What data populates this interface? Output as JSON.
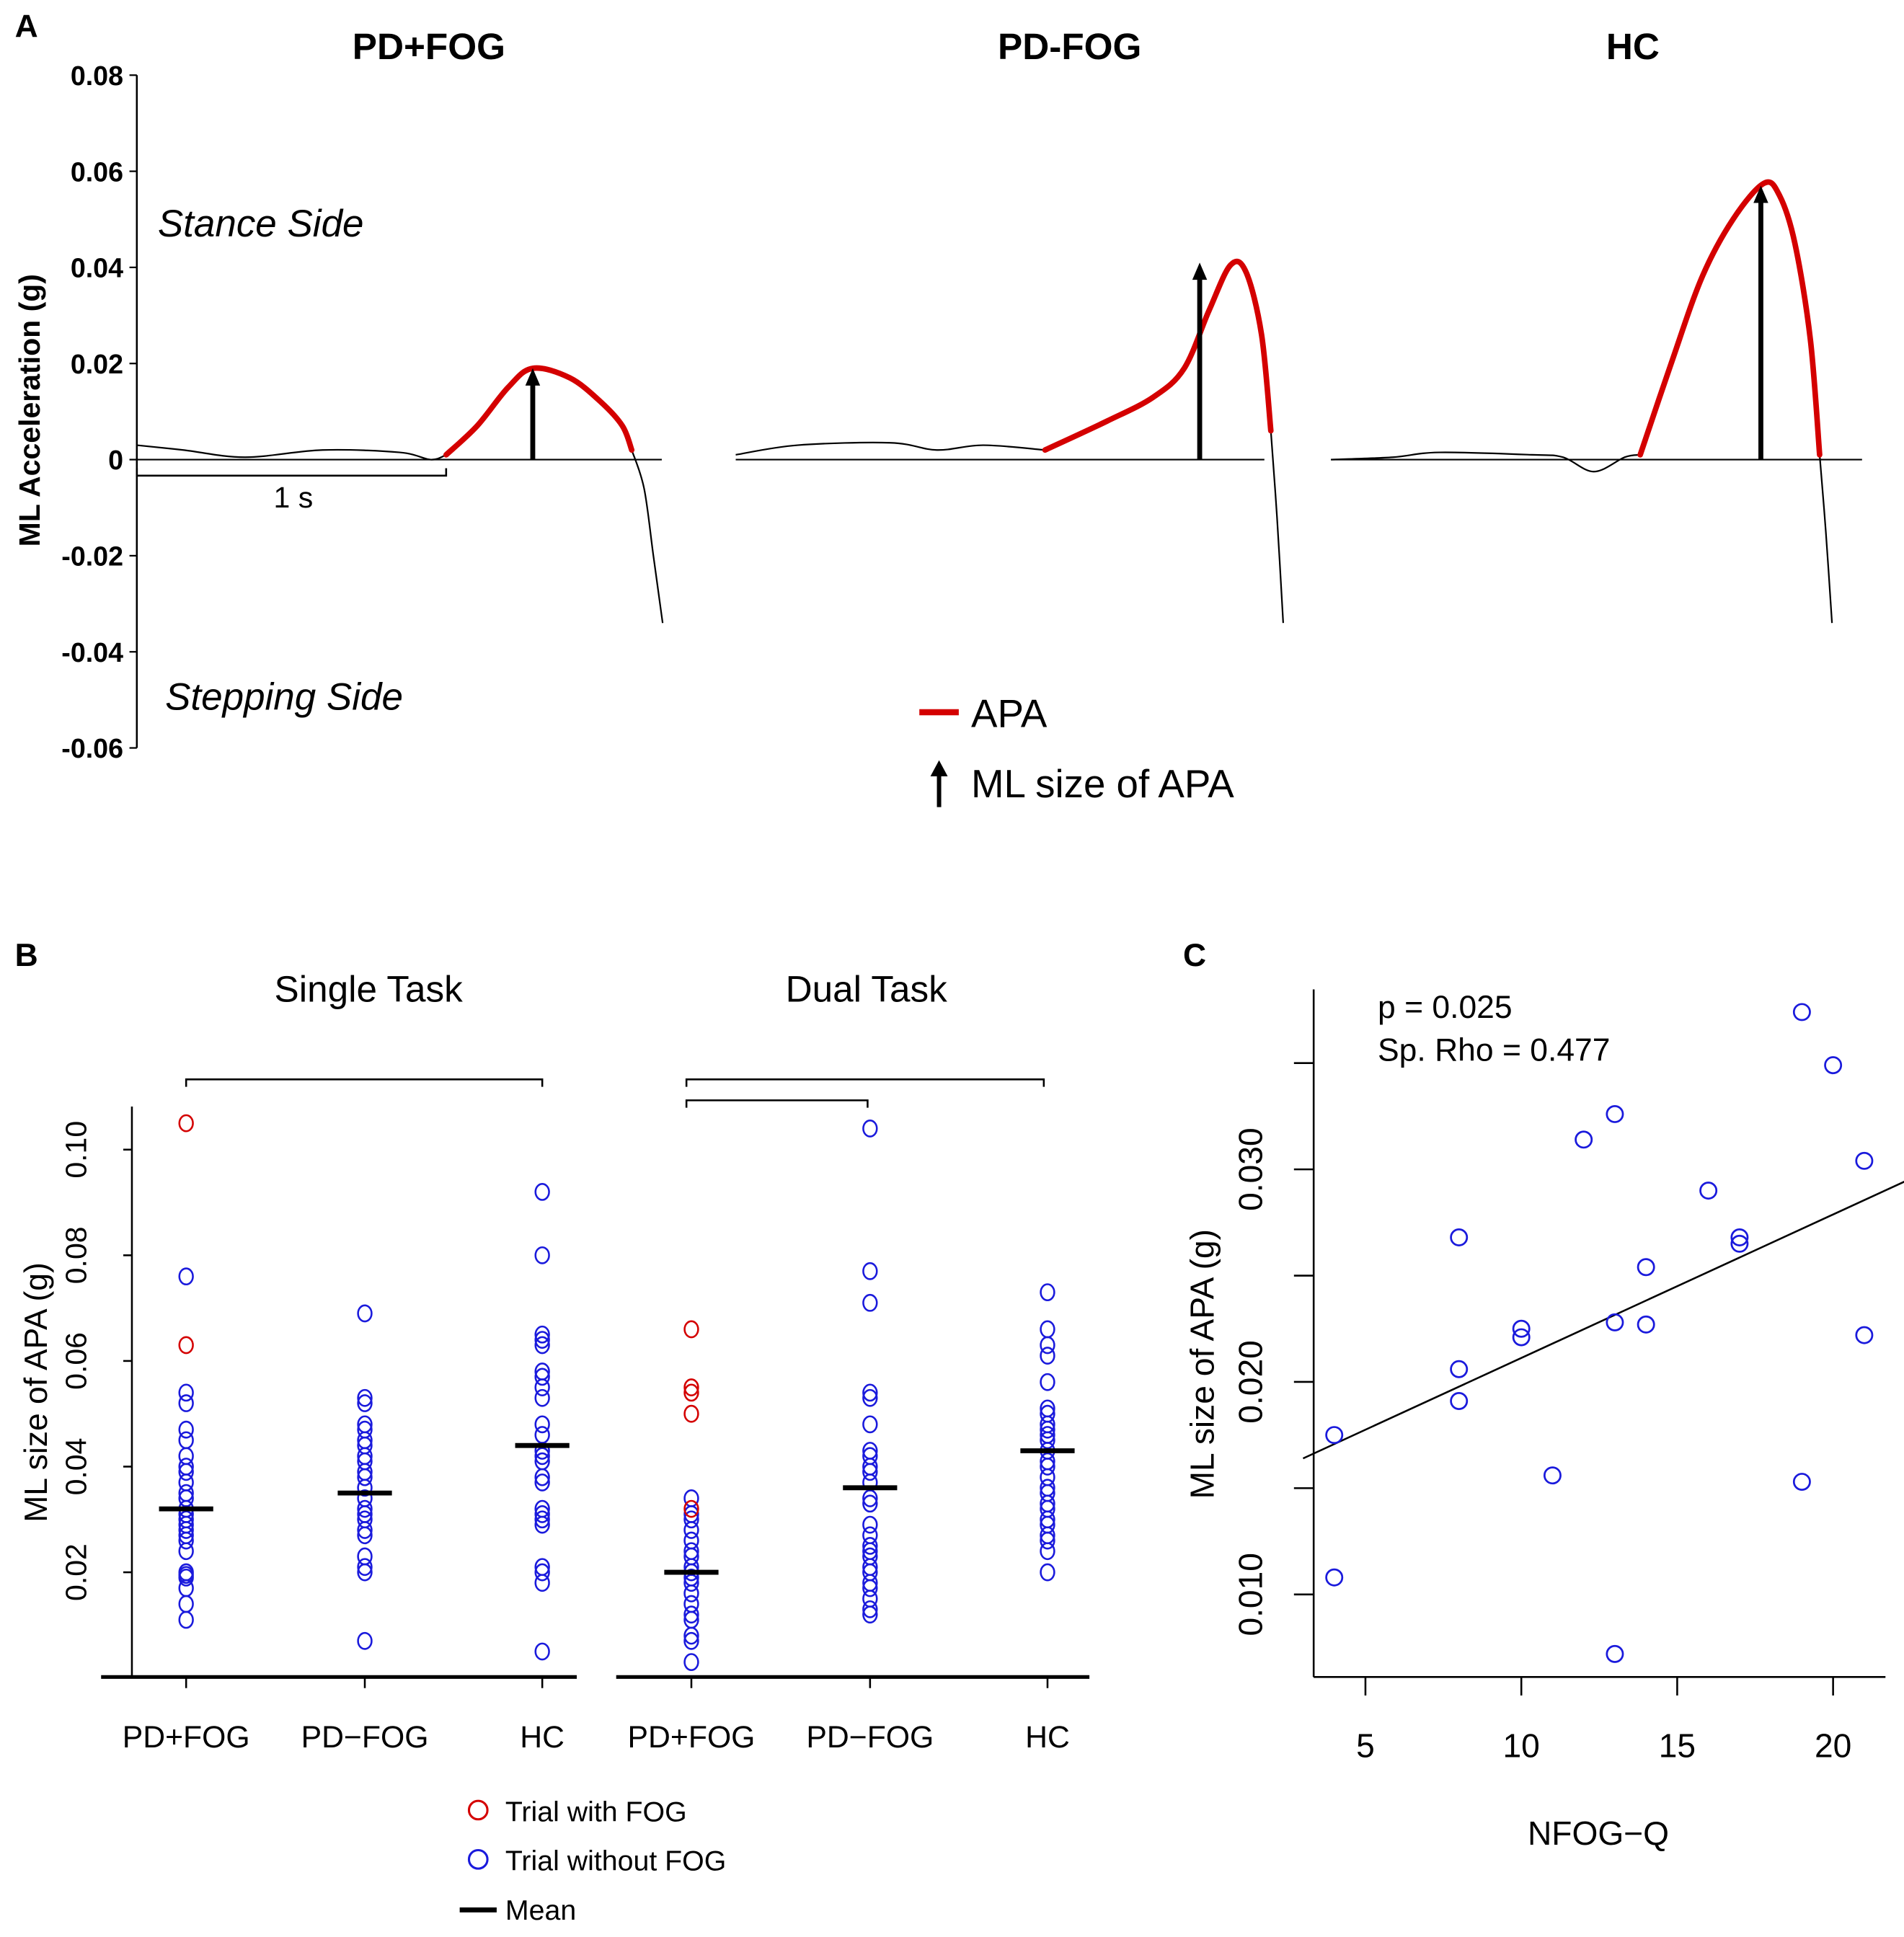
{
  "panel_labels": {
    "a": "A",
    "b": "B",
    "c": "C"
  },
  "colors": {
    "apa": "#d40000",
    "fog": "#d40000",
    "nofog": "#1a1adc",
    "ink": "#000000"
  },
  "chart_data": [
    {
      "type": "line",
      "id": "A",
      "ylabel": "ML Acceleration (g)",
      "ylim": [
        -0.06,
        0.08
      ],
      "yticks": [
        "0.08",
        "0.06",
        "0.04",
        "0.02",
        "0",
        "-0.02",
        "-0.04",
        "-0.06"
      ],
      "ytick_values": [
        0.08,
        0.06,
        0.04,
        0.02,
        0,
        -0.02,
        -0.04,
        -0.06
      ],
      "annotations": {
        "stance": "Stance Side",
        "stepping": "Stepping Side",
        "scale_bar": "1 s"
      },
      "legend": {
        "apa": "APA",
        "arrow": "ML size of APA"
      },
      "panels": [
        {
          "title": "PD+FOG",
          "apa_size": 0.019,
          "apa_time": 1.28,
          "pre": [
            [
              0,
              0.003
            ],
            [
              0.15,
              0.002
            ],
            [
              0.35,
              0.0005
            ],
            [
              0.6,
              0.002
            ],
            [
              0.85,
              0.0015
            ],
            [
              0.95,
              0.0
            ],
            [
              1.0,
              0.001
            ]
          ],
          "apa": [
            [
              1.0,
              0.001
            ],
            [
              1.1,
              0.007
            ],
            [
              1.2,
              0.015
            ],
            [
              1.28,
              0.019
            ],
            [
              1.4,
              0.017
            ],
            [
              1.5,
              0.012
            ],
            [
              1.57,
              0.007
            ],
            [
              1.6,
              0.002
            ]
          ],
          "post": [
            [
              1.6,
              0.002
            ],
            [
              1.64,
              -0.006
            ],
            [
              1.67,
              -0.02
            ],
            [
              1.7,
              -0.034
            ]
          ]
        },
        {
          "title": "PD-FOG",
          "apa_size": 0.041,
          "apa_time": 1.5,
          "pre": [
            [
              0,
              0.001
            ],
            [
              0.2,
              0.003
            ],
            [
              0.5,
              0.0035
            ],
            [
              0.65,
              0.002
            ],
            [
              0.8,
              0.003
            ],
            [
              1.0,
              0.002
            ]
          ],
          "apa": [
            [
              1.0,
              0.002
            ],
            [
              1.2,
              0.008
            ],
            [
              1.35,
              0.013
            ],
            [
              1.45,
              0.019
            ],
            [
              1.53,
              0.031
            ],
            [
              1.6,
              0.0405
            ],
            [
              1.65,
              0.039
            ],
            [
              1.7,
              0.026
            ],
            [
              1.73,
              0.006
            ]
          ],
          "post": [
            [
              1.73,
              0.006
            ],
            [
              1.75,
              -0.012
            ],
            [
              1.77,
              -0.034
            ]
          ]
        },
        {
          "title": "HC",
          "apa_size": 0.057,
          "apa_time": 1.39,
          "pre": [
            [
              0,
              0.0
            ],
            [
              0.2,
              0.0005
            ],
            [
              0.35,
              0.0015
            ],
            [
              0.65,
              0.001
            ],
            [
              0.75,
              0.0005
            ],
            [
              0.85,
              -0.0025
            ],
            [
              0.95,
              0.0005
            ],
            [
              1.0,
              0.001
            ]
          ],
          "apa": [
            [
              1.0,
              0.001
            ],
            [
              1.1,
              0.02
            ],
            [
              1.2,
              0.038
            ],
            [
              1.3,
              0.05
            ],
            [
              1.4,
              0.0575
            ],
            [
              1.45,
              0.055
            ],
            [
              1.5,
              0.045
            ],
            [
              1.55,
              0.025
            ],
            [
              1.58,
              0.001
            ]
          ],
          "post": [
            [
              1.58,
              0.001
            ],
            [
              1.6,
              -0.015
            ],
            [
              1.62,
              -0.034
            ]
          ]
        }
      ]
    },
    {
      "type": "scatter",
      "id": "B",
      "ylabel": "ML size of APA (g)",
      "yticks": [
        "0.02",
        "0.04",
        "0.06",
        "0.08",
        "0.10"
      ],
      "ytick_values": [
        0.02,
        0.04,
        0.06,
        0.08,
        0.1
      ],
      "groups": [
        {
          "title": "Single Task",
          "categories": [
            "PD+FOG",
            "PD−FOG",
            "HC"
          ],
          "series": [
            {
              "name": "PD+FOG",
              "mean": 0.032,
              "fog": [
                0.105,
                0.063
              ],
              "nofog": [
                0.076,
                0.054,
                0.052,
                0.047,
                0.045,
                0.042,
                0.04,
                0.039,
                0.037,
                0.035,
                0.034,
                0.032,
                0.031,
                0.03,
                0.029,
                0.028,
                0.027,
                0.026,
                0.024,
                0.02,
                0.0195,
                0.019,
                0.017,
                0.014,
                0.011
              ]
            },
            {
              "name": "PD-FOG",
              "mean": 0.035,
              "fog": [],
              "nofog": [
                0.069,
                0.053,
                0.052,
                0.048,
                0.047,
                0.045,
                0.044,
                0.042,
                0.041,
                0.039,
                0.038,
                0.036,
                0.034,
                0.032,
                0.031,
                0.03,
                0.028,
                0.027,
                0.023,
                0.021,
                0.02,
                0.007
              ]
            },
            {
              "name": "HC",
              "mean": 0.044,
              "fog": [],
              "nofog": [
                0.092,
                0.08,
                0.065,
                0.064,
                0.063,
                0.058,
                0.057,
                0.055,
                0.053,
                0.048,
                0.046,
                0.043,
                0.042,
                0.041,
                0.038,
                0.037,
                0.032,
                0.031,
                0.03,
                0.029,
                0.021,
                0.02,
                0.018,
                0.005
              ]
            }
          ]
        },
        {
          "title": "Dual Task",
          "categories": [
            "PD+FOG",
            "PD−FOG",
            "HC"
          ],
          "series": [
            {
              "name": "PD+FOG",
              "mean": 0.02,
              "fog": [
                0.066,
                0.055,
                0.054,
                0.05,
                0.032
              ],
              "nofog": [
                0.034,
                0.031,
                0.03,
                0.028,
                0.026,
                0.024,
                0.023,
                0.021,
                0.02,
                0.019,
                0.018,
                0.016,
                0.014,
                0.012,
                0.011,
                0.008,
                0.007,
                0.003
              ]
            },
            {
              "name": "PD-FOG",
              "mean": 0.036,
              "fog": [],
              "nofog": [
                0.104,
                0.077,
                0.071,
                0.054,
                0.053,
                0.048,
                0.043,
                0.042,
                0.04,
                0.039,
                0.037,
                0.034,
                0.033,
                0.029,
                0.027,
                0.025,
                0.024,
                0.023,
                0.021,
                0.02,
                0.018,
                0.017,
                0.015,
                0.013,
                0.012
              ]
            },
            {
              "name": "HC",
              "mean": 0.043,
              "fog": [],
              "nofog": [
                0.073,
                0.066,
                0.063,
                0.061,
                0.056,
                0.051,
                0.05,
                0.048,
                0.047,
                0.046,
                0.045,
                0.043,
                0.041,
                0.04,
                0.038,
                0.036,
                0.035,
                0.033,
                0.032,
                0.03,
                0.029,
                0.027,
                0.026,
                0.024,
                0.02
              ]
            }
          ]
        }
      ],
      "legend": {
        "fog": "Trial with FOG",
        "nofog": "Trial without FOG",
        "mean": "Mean"
      }
    },
    {
      "type": "scatter",
      "id": "C",
      "xlabel": "NFOG−Q",
      "ylabel": "ML size of APA (g)",
      "xticks": [
        "5",
        "10",
        "15",
        "20"
      ],
      "xtick_values": [
        5,
        10,
        15,
        20
      ],
      "yticks": [
        "0.010",
        "0.020",
        "0.030"
      ],
      "ytick_values": [
        0.01,
        0.02,
        0.03
      ],
      "minor_yticks": [
        0.015,
        0.025,
        0.035
      ],
      "stats": {
        "p": "p = 0.025",
        "rho": "Sp. Rho = 0.477"
      },
      "points": [
        [
          4,
          0.0175
        ],
        [
          4,
          0.0108
        ],
        [
          8,
          0.0268
        ],
        [
          8,
          0.0206
        ],
        [
          8,
          0.0191
        ],
        [
          10,
          0.0225
        ],
        [
          10,
          0.0221
        ],
        [
          11,
          0.0156
        ],
        [
          12,
          0.0314
        ],
        [
          13,
          0.0326
        ],
        [
          13,
          0.0228
        ],
        [
          13,
          0.0072
        ],
        [
          14,
          0.0254
        ],
        [
          14,
          0.0227
        ],
        [
          16,
          0.029
        ],
        [
          17,
          0.0268
        ],
        [
          17,
          0.0265
        ],
        [
          19,
          0.0374
        ],
        [
          19,
          0.0153
        ],
        [
          20,
          0.0349
        ],
        [
          21,
          0.0304
        ],
        [
          21,
          0.0222
        ]
      ],
      "fit_line": [
        [
          3.0,
          0.0164
        ],
        [
          22.7,
          0.0297
        ]
      ]
    }
  ]
}
